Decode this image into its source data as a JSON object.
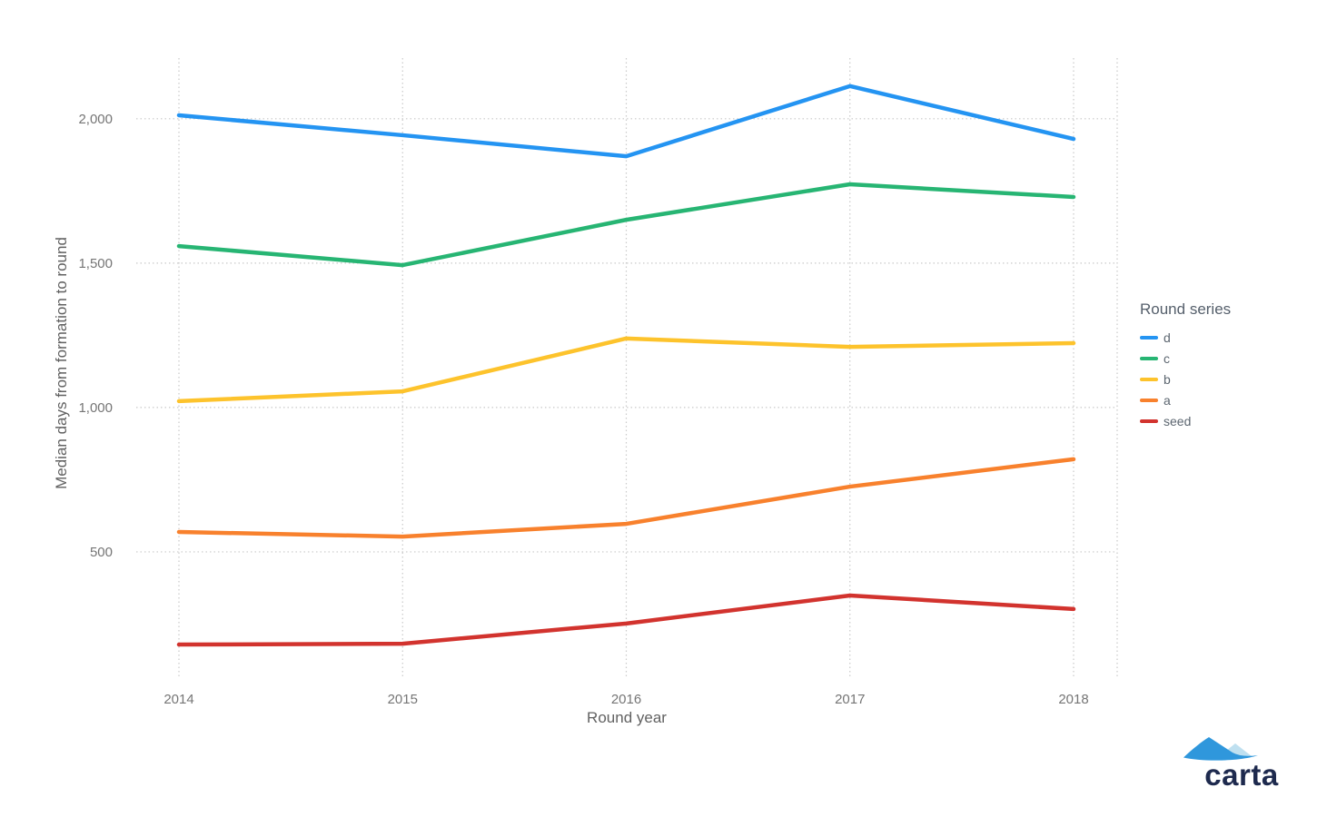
{
  "chart_data": {
    "type": "line",
    "title": "",
    "xlabel": "Round year",
    "ylabel": "Median days from formation to round",
    "x": [
      2014,
      2015,
      2016,
      2017,
      2018
    ],
    "x_tick_labels": [
      "2014",
      "2015",
      "2016",
      "2017",
      "2018"
    ],
    "y_ticks": [
      {
        "value": 500,
        "label": "500"
      },
      {
        "value": 1000,
        "label": "1,000"
      },
      {
        "value": 1500,
        "label": "1,500"
      },
      {
        "value": 2000,
        "label": "2,000"
      }
    ],
    "ylim": [
      66,
      2210
    ],
    "grid": "dotted",
    "legend_position": "right",
    "series": [
      {
        "name": "d",
        "color": "#2494F2",
        "values": [
          2012,
          1943,
          1870,
          2113,
          1930
        ]
      },
      {
        "name": "c",
        "color": "#27B573",
        "values": [
          1559,
          1493,
          1650,
          1773,
          1729
        ]
      },
      {
        "name": "b",
        "color": "#FDC32C",
        "values": [
          1022,
          1056,
          1239,
          1210,
          1223
        ]
      },
      {
        "name": "a",
        "color": "#F8812D",
        "values": [
          569,
          553,
          597,
          726,
          821
        ]
      },
      {
        "name": "seed",
        "color": "#D2332E",
        "values": [
          179,
          182,
          252,
          349,
          302
        ]
      }
    ]
  },
  "legend": {
    "title": "Round series"
  },
  "logo": {
    "text": "carta",
    "mountain_main_color": "#2F97DC",
    "mountain_light_color": "#BFE0F0",
    "text_color": "#1E2A4E"
  }
}
